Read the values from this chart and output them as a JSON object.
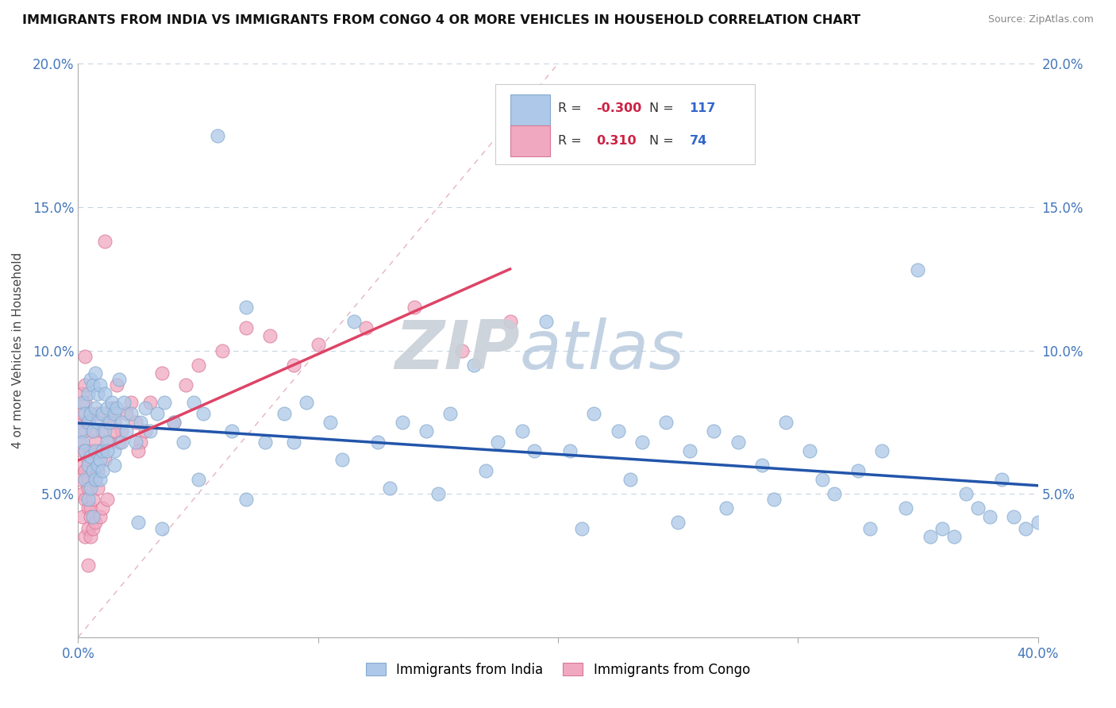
{
  "title": "IMMIGRANTS FROM INDIA VS IMMIGRANTS FROM CONGO 4 OR MORE VEHICLES IN HOUSEHOLD CORRELATION CHART",
  "source": "Source: ZipAtlas.com",
  "ylabel": "4 or more Vehicles in Household",
  "xlim": [
    0.0,
    0.4
  ],
  "ylim": [
    0.0,
    0.2
  ],
  "xticks": [
    0.0,
    0.1,
    0.2,
    0.3,
    0.4
  ],
  "yticks": [
    0.0,
    0.05,
    0.1,
    0.15,
    0.2
  ],
  "xticklabels": [
    "0.0%",
    "",
    "",
    "",
    "40.0%"
  ],
  "yticklabels_left": [
    "",
    "5.0%",
    "10.0%",
    "15.0%",
    "20.0%"
  ],
  "yticklabels_right": [
    "",
    "5.0%",
    "10.0%",
    "15.0%",
    "20.0%"
  ],
  "india_color": "#adc8e8",
  "india_edge_color": "#85aace",
  "congo_color": "#f0a8c0",
  "congo_edge_color": "#d87898",
  "india_line_color": "#2255aa",
  "congo_line_color": "#dd4466",
  "diag_line_color": "#e8a0b0",
  "india_R": -0.3,
  "india_N": 117,
  "congo_R": 0.31,
  "congo_N": 74,
  "watermark": "ZIPatlas",
  "watermark_color": "#ccd8e4",
  "legend_R_color": "#cc2244",
  "legend_N_color": "#3366cc",
  "india_x": [
    0.001,
    0.002,
    0.002,
    0.003,
    0.003,
    0.003,
    0.004,
    0.004,
    0.004,
    0.004,
    0.005,
    0.005,
    0.005,
    0.005,
    0.006,
    0.006,
    0.006,
    0.006,
    0.007,
    0.007,
    0.007,
    0.007,
    0.008,
    0.008,
    0.008,
    0.009,
    0.009,
    0.009,
    0.01,
    0.01,
    0.01,
    0.011,
    0.011,
    0.012,
    0.012,
    0.013,
    0.014,
    0.015,
    0.015,
    0.016,
    0.017,
    0.018,
    0.018,
    0.019,
    0.02,
    0.022,
    0.024,
    0.026,
    0.028,
    0.03,
    0.033,
    0.036,
    0.04,
    0.044,
    0.048,
    0.052,
    0.058,
    0.064,
    0.07,
    0.078,
    0.086,
    0.095,
    0.105,
    0.115,
    0.125,
    0.135,
    0.145,
    0.155,
    0.165,
    0.175,
    0.185,
    0.195,
    0.205,
    0.215,
    0.225,
    0.235,
    0.245,
    0.255,
    0.265,
    0.275,
    0.285,
    0.295,
    0.305,
    0.315,
    0.325,
    0.335,
    0.345,
    0.355,
    0.36,
    0.365,
    0.37,
    0.375,
    0.38,
    0.385,
    0.39,
    0.395,
    0.4,
    0.35,
    0.33,
    0.31,
    0.29,
    0.27,
    0.25,
    0.23,
    0.21,
    0.19,
    0.17,
    0.15,
    0.13,
    0.11,
    0.09,
    0.07,
    0.05,
    0.035,
    0.025,
    0.015,
    0.012
  ],
  "india_y": [
    0.072,
    0.068,
    0.082,
    0.065,
    0.078,
    0.055,
    0.085,
    0.06,
    0.075,
    0.048,
    0.09,
    0.063,
    0.078,
    0.052,
    0.088,
    0.058,
    0.072,
    0.042,
    0.092,
    0.065,
    0.08,
    0.055,
    0.085,
    0.06,
    0.075,
    0.088,
    0.062,
    0.055,
    0.078,
    0.065,
    0.058,
    0.085,
    0.072,
    0.08,
    0.068,
    0.075,
    0.082,
    0.078,
    0.065,
    0.08,
    0.09,
    0.068,
    0.075,
    0.082,
    0.072,
    0.078,
    0.068,
    0.075,
    0.08,
    0.072,
    0.078,
    0.082,
    0.075,
    0.068,
    0.082,
    0.078,
    0.175,
    0.072,
    0.115,
    0.068,
    0.078,
    0.082,
    0.075,
    0.11,
    0.068,
    0.075,
    0.072,
    0.078,
    0.095,
    0.068,
    0.072,
    0.11,
    0.065,
    0.078,
    0.072,
    0.068,
    0.075,
    0.065,
    0.072,
    0.068,
    0.06,
    0.075,
    0.065,
    0.05,
    0.058,
    0.065,
    0.045,
    0.035,
    0.038,
    0.035,
    0.05,
    0.045,
    0.042,
    0.055,
    0.042,
    0.038,
    0.04,
    0.128,
    0.038,
    0.055,
    0.048,
    0.045,
    0.04,
    0.055,
    0.038,
    0.065,
    0.058,
    0.05,
    0.052,
    0.062,
    0.068,
    0.048,
    0.055,
    0.038,
    0.04,
    0.06,
    0.065
  ],
  "congo_x": [
    0.001,
    0.001,
    0.001,
    0.002,
    0.002,
    0.002,
    0.002,
    0.002,
    0.002,
    0.003,
    0.003,
    0.003,
    0.003,
    0.003,
    0.003,
    0.003,
    0.004,
    0.004,
    0.004,
    0.004,
    0.004,
    0.004,
    0.005,
    0.005,
    0.005,
    0.005,
    0.005,
    0.006,
    0.006,
    0.006,
    0.006,
    0.007,
    0.007,
    0.007,
    0.008,
    0.008,
    0.009,
    0.009,
    0.01,
    0.01,
    0.011,
    0.011,
    0.012,
    0.012,
    0.013,
    0.014,
    0.015,
    0.016,
    0.017,
    0.018,
    0.02,
    0.022,
    0.024,
    0.026,
    0.028,
    0.03,
    0.035,
    0.04,
    0.045,
    0.05,
    0.06,
    0.07,
    0.08,
    0.09,
    0.1,
    0.12,
    0.14,
    0.16,
    0.18,
    0.025,
    0.015,
    0.008,
    0.004,
    0.003
  ],
  "congo_y": [
    0.068,
    0.055,
    0.075,
    0.065,
    0.078,
    0.05,
    0.085,
    0.042,
    0.06,
    0.072,
    0.058,
    0.082,
    0.048,
    0.065,
    0.035,
    0.088,
    0.062,
    0.075,
    0.045,
    0.055,
    0.038,
    0.052,
    0.078,
    0.065,
    0.045,
    0.035,
    0.042,
    0.072,
    0.058,
    0.048,
    0.038,
    0.068,
    0.055,
    0.04,
    0.078,
    0.052,
    0.065,
    0.042,
    0.072,
    0.045,
    0.138,
    0.062,
    0.075,
    0.048,
    0.068,
    0.08,
    0.075,
    0.088,
    0.068,
    0.072,
    0.078,
    0.082,
    0.075,
    0.068,
    0.072,
    0.082,
    0.092,
    0.075,
    0.088,
    0.095,
    0.1,
    0.108,
    0.105,
    0.095,
    0.102,
    0.108,
    0.115,
    0.1,
    0.11,
    0.065,
    0.072,
    0.058,
    0.025,
    0.098
  ]
}
